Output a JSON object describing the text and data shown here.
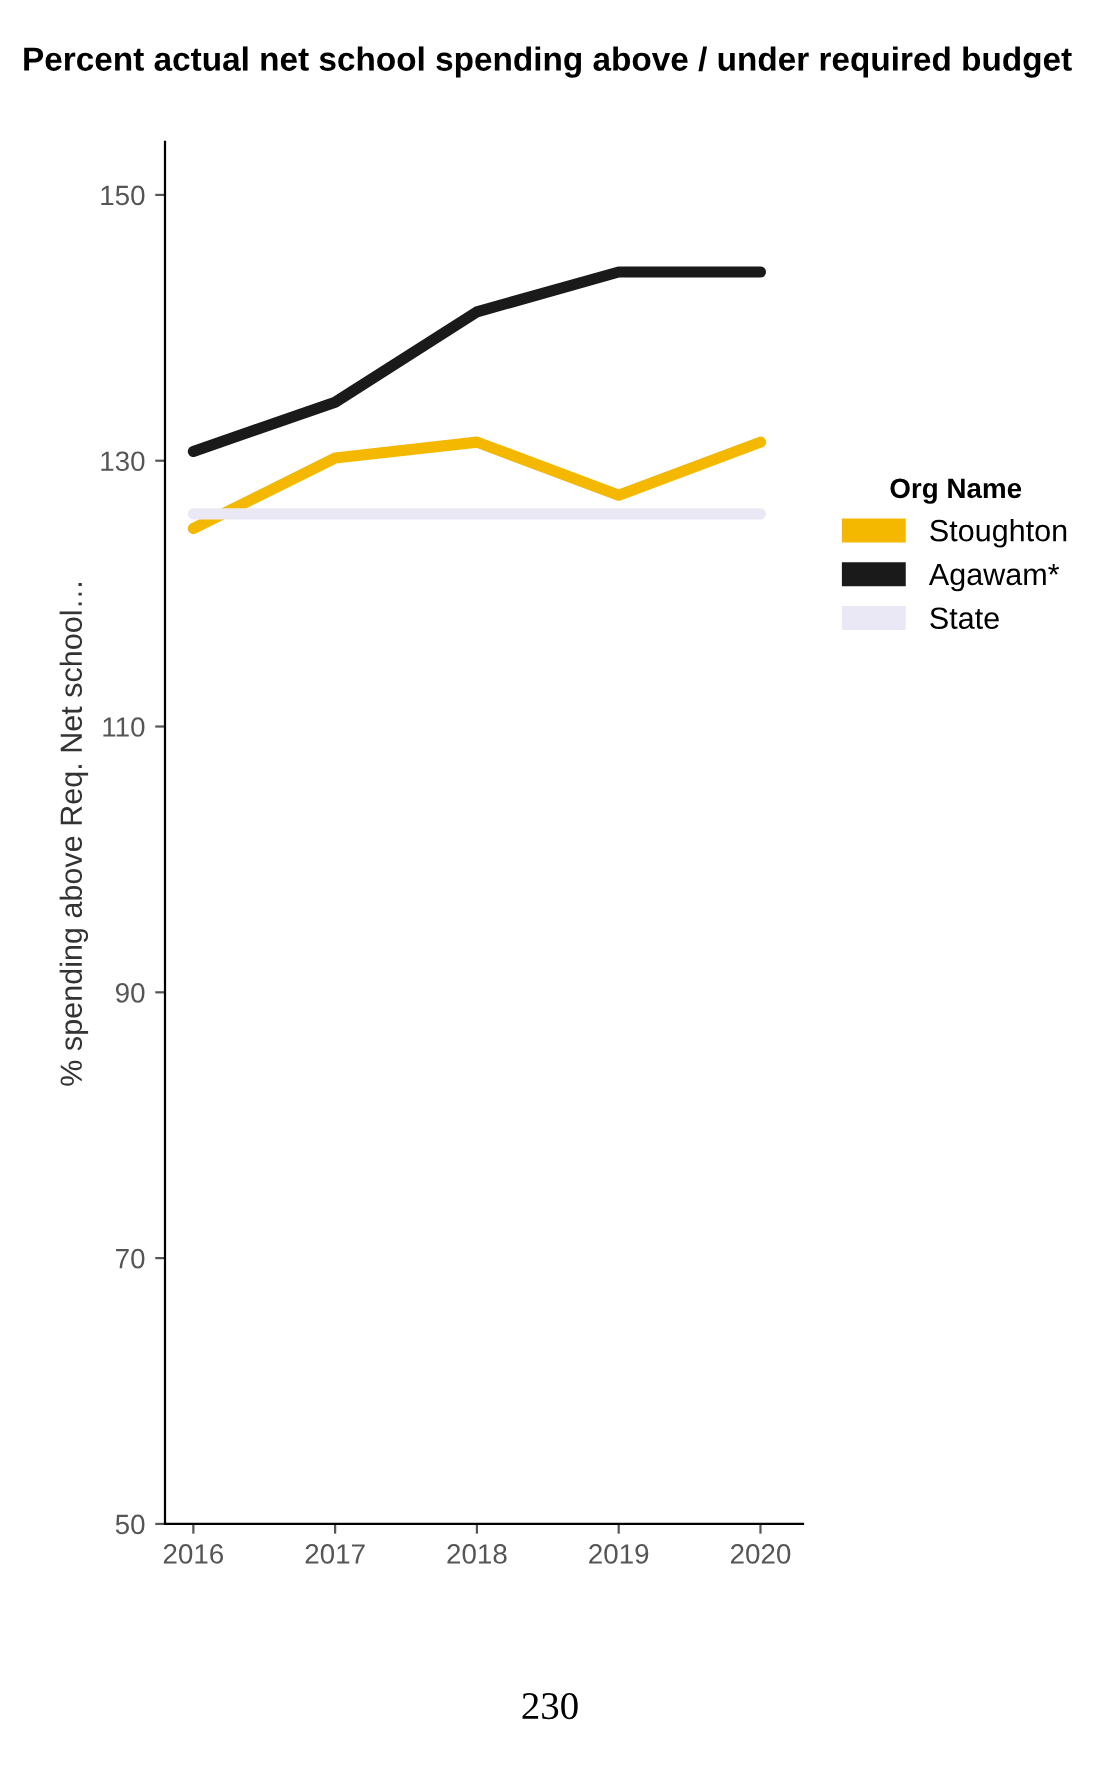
{
  "chart_data": {
    "type": "line",
    "title": "Percent actual net school spending above / under required budget",
    "xlabel": null,
    "ylabel": "% spending above Req. Net school…",
    "legend_title": "Org Name",
    "x": [
      2016,
      2017,
      2018,
      2019,
      2020
    ],
    "series": [
      {
        "name": "Stoughton",
        "color": "#f5b800",
        "values": [
          124.9,
          130.2,
          131.4,
          127.4,
          131.4
        ]
      },
      {
        "name": "Agawam*",
        "color": "#1a1a1a",
        "values": [
          130.7,
          134.4,
          141.2,
          144.2,
          144.2
        ]
      },
      {
        "name": "State",
        "color": "#ebe8f5",
        "values": [
          126,
          126,
          126,
          126,
          126
        ]
      }
    ],
    "xlim": [
      2015.8,
      2020.3
    ],
    "xticks": [
      2016,
      2017,
      2018,
      2019,
      2020
    ],
    "ylim": [
      50,
      154
    ],
    "yticks": [
      50,
      70,
      90,
      110,
      130,
      150
    ],
    "grid": false,
    "legend": "right",
    "marker": "none",
    "line_style": "solid",
    "annotations": [
      "230"
    ]
  }
}
